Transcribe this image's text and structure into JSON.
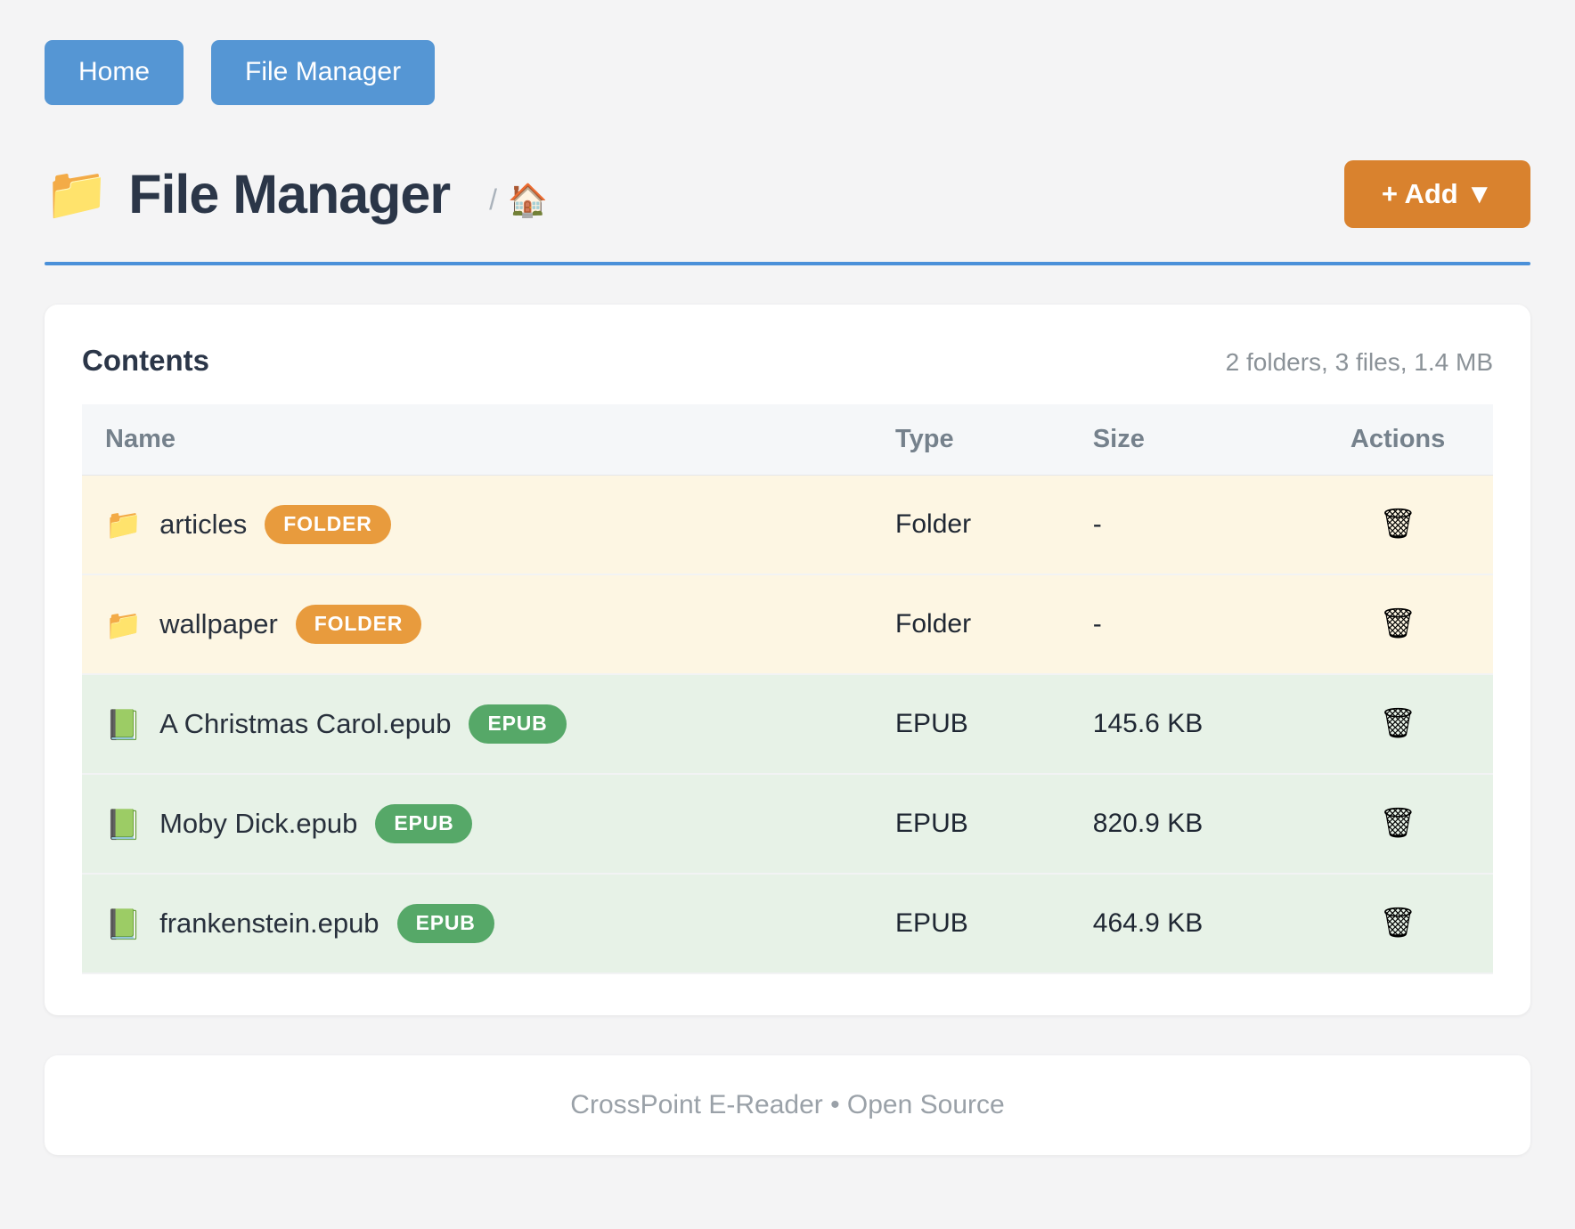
{
  "nav": {
    "home_label": "Home",
    "file_manager_label": "File Manager"
  },
  "header": {
    "folder_icon": "📁",
    "title": "File Manager",
    "breadcrumb_separator": "/",
    "breadcrumb_home_icon": "🏠",
    "add_button_label": "+ Add ▼"
  },
  "contents": {
    "title": "Contents",
    "summary": "2 folders, 3 files, 1.4 MB",
    "columns": [
      "Name",
      "Type",
      "Size",
      "Actions"
    ],
    "action_icon": "🗑",
    "rows": [
      {
        "kind": "folder",
        "icon": "📁",
        "name": "articles",
        "badge": "FOLDER",
        "type": "Folder",
        "size": "-"
      },
      {
        "kind": "folder",
        "icon": "📁",
        "name": "wallpaper",
        "badge": "FOLDER",
        "type": "Folder",
        "size": "-"
      },
      {
        "kind": "file",
        "icon": "📗",
        "name": "A Christmas Carol.epub",
        "badge": "EPUB",
        "type": "EPUB",
        "size": "145.6 KB"
      },
      {
        "kind": "file",
        "icon": "📗",
        "name": "Moby Dick.epub",
        "badge": "EPUB",
        "type": "EPUB",
        "size": "820.9 KB"
      },
      {
        "kind": "file",
        "icon": "📗",
        "name": "frankenstein.epub",
        "badge": "EPUB",
        "type": "EPUB",
        "size": "464.9 KB"
      }
    ]
  },
  "footer": {
    "text": "CrossPoint E-Reader • Open Source"
  },
  "colors": {
    "nav_button": "#5596d4",
    "add_button": "#d9822e",
    "rule_blue": "#4a90d9",
    "badge_folder": "#e89b3d",
    "badge_epub": "#56a868",
    "row_folder_bg": "#fdf6e3",
    "row_file_bg": "#e7f2e7",
    "title_text": "#2b3648"
  }
}
